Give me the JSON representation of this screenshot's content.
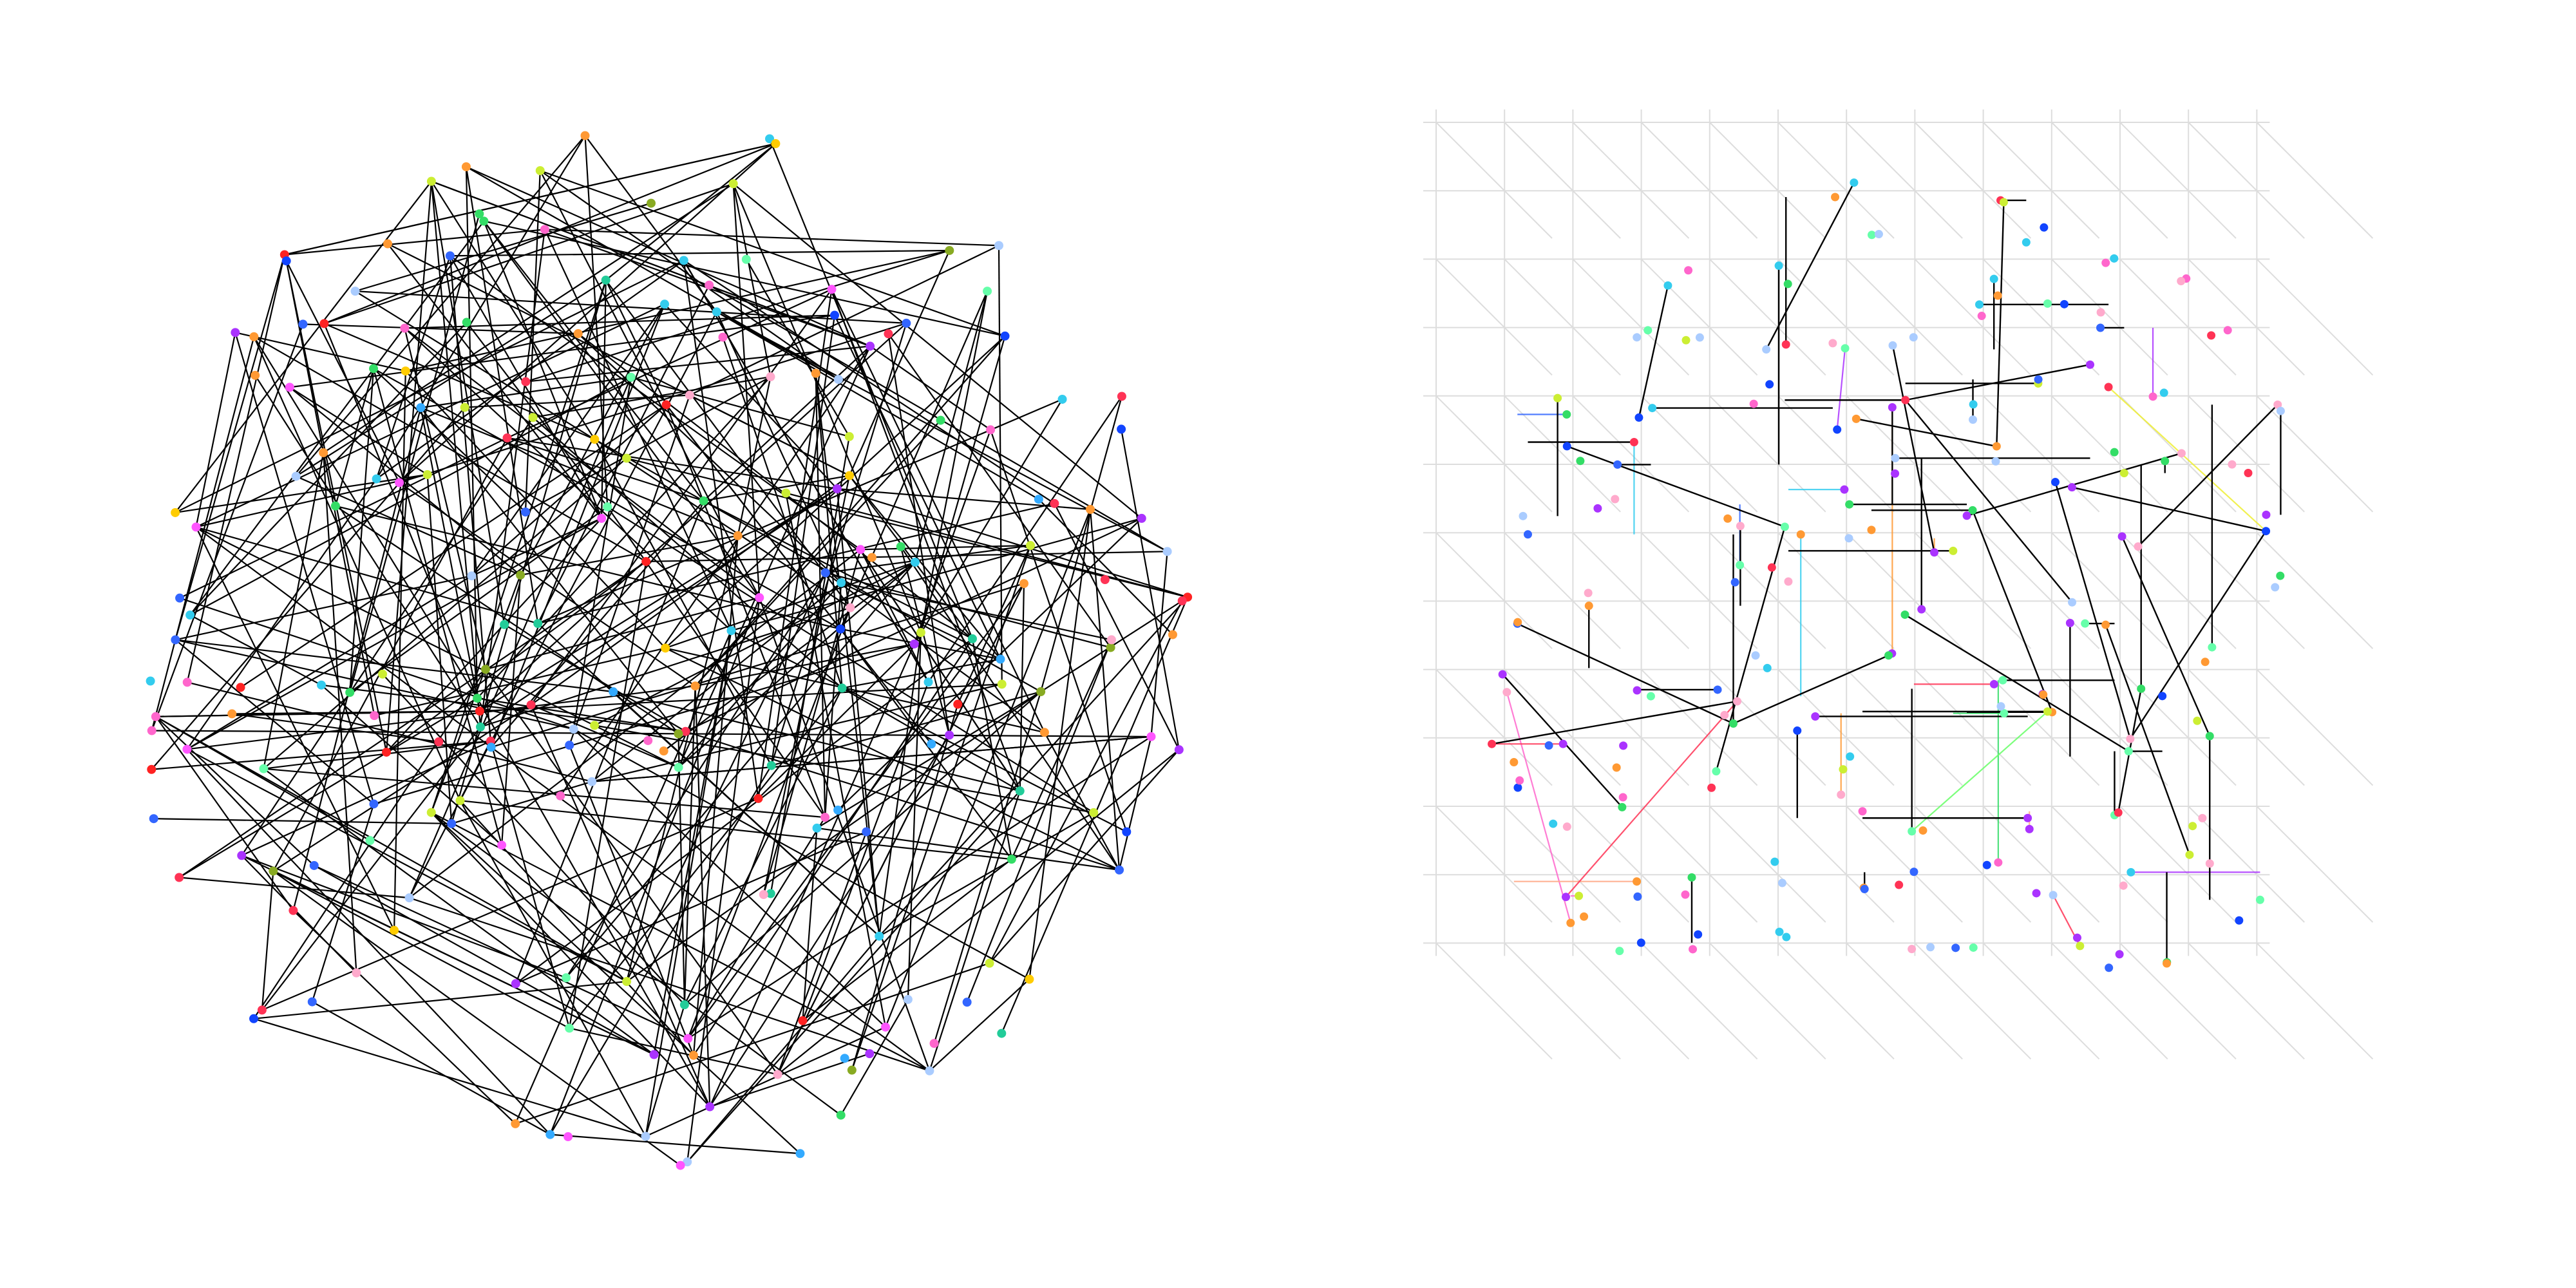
{
  "figure": {
    "panels": [
      {
        "id": "left",
        "kind": "random-graph",
        "node_count": 220,
        "edge_count": 420,
        "seed": 7,
        "edge_color": "#000000",
        "node_palette": [
          "#ff3355",
          "#3366ff",
          "#33dd66",
          "#ff9933",
          "#aa33ff",
          "#33ccee",
          "#ff66cc",
          "#ccee33",
          "#1144ff",
          "#ff2222",
          "#66ffaa",
          "#aaccff",
          "#ffaacc",
          "#88aa22",
          "#33aaff",
          "#ff55ff",
          "#22cc99",
          "#ffcc00"
        ]
      },
      {
        "id": "right",
        "kind": "grid-embedded-graph",
        "grid_size": 13,
        "seed": 11,
        "background_edge_color": "#dddddd",
        "foreground_edge_color": "#000000",
        "colored_edge_palette": [
          "#ff3355",
          "#3366ff",
          "#33dd66",
          "#ff9933",
          "#aa33ff",
          "#33ccee",
          "#ff66cc",
          "#eeee33",
          "#66ff66",
          "#ffaa88"
        ],
        "node_palette": [
          "#ff3355",
          "#3366ff",
          "#33dd66",
          "#ff9933",
          "#aa33ff",
          "#33ccee",
          "#ff66cc",
          "#ccee33",
          "#1144ff",
          "#66ffaa",
          "#aaccff",
          "#ffaacc"
        ]
      }
    ]
  }
}
